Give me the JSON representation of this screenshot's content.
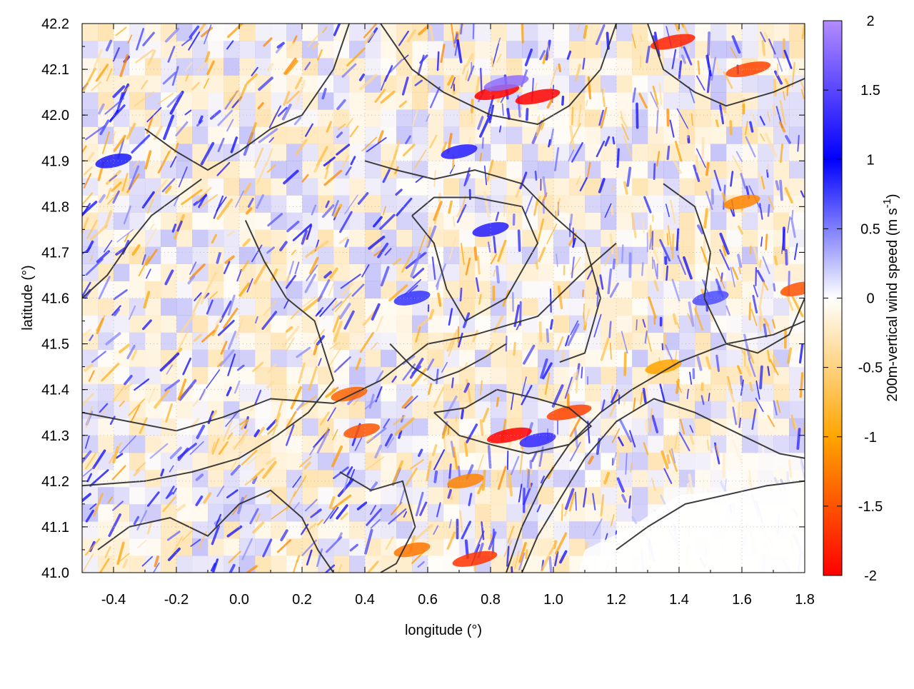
{
  "chart_data": {
    "type": "heatmap",
    "title": "",
    "xlabel": "longitude (°)",
    "ylabel": "latitude (°)",
    "xlim": [
      -0.5,
      1.8
    ],
    "ylim": [
      41.0,
      42.2
    ],
    "xticks": [
      -0.4,
      -0.2,
      0.0,
      0.2,
      0.4,
      0.6,
      0.8,
      1.0,
      1.2,
      1.4,
      1.6,
      1.8
    ],
    "xtick_labels": [
      "-0.4",
      "-0.2",
      "0.0",
      "0.2",
      "0.4",
      "0.6",
      "0.8",
      "1.0",
      "1.2",
      "1.4",
      "1.6",
      "1.8"
    ],
    "yticks": [
      41.0,
      41.1,
      41.2,
      41.3,
      41.4,
      41.5,
      41.6,
      41.7,
      41.8,
      41.9,
      42.0,
      42.1,
      42.2
    ],
    "ytick_labels": [
      "41.0",
      "41.1",
      "41.2",
      "41.3",
      "41.4",
      "41.5",
      "41.6",
      "41.7",
      "41.8",
      "41.9",
      "42.0",
      "42.1",
      "42.2"
    ],
    "grid": true,
    "colorbar": {
      "label_main": "200m-vertical wind speed (m s",
      "label_sup": "-1",
      "label_end": ")",
      "range": [
        -2,
        2
      ],
      "ticks": [
        2,
        1.5,
        1,
        0.5,
        0,
        -0.5,
        -1,
        -1.5,
        -2
      ],
      "tick_labels": [
        "2",
        "1.5",
        "1",
        "0.5",
        "0",
        "-0.5",
        "-1",
        "-1.5",
        "-2"
      ],
      "colors": {
        "max": "#b38cff",
        "high": "#0000ff",
        "zero": "#ffffff",
        "low": "#ffa500",
        "min": "#ff0000"
      }
    },
    "contour_color": "#333333",
    "notes_field_regions": [
      {
        "lon": 0.82,
        "lat": 42.05,
        "w": -2.0
      },
      {
        "lon": 0.95,
        "lat": 42.04,
        "w": -2.0
      },
      {
        "lon": 1.38,
        "lat": 42.16,
        "w": -1.8
      },
      {
        "lon": 1.62,
        "lat": 42.1,
        "w": -1.6
      },
      {
        "lon": 0.86,
        "lat": 41.3,
        "w": -2.0
      },
      {
        "lon": 1.05,
        "lat": 41.35,
        "w": -1.6
      },
      {
        "lon": 0.39,
        "lat": 41.31,
        "w": -1.5
      },
      {
        "lon": 0.35,
        "lat": 41.39,
        "w": -1.4
      },
      {
        "lon": 0.75,
        "lat": 41.03,
        "w": -1.7
      },
      {
        "lon": 0.55,
        "lat": 41.05,
        "w": -1.3
      },
      {
        "lon": 0.72,
        "lat": 41.2,
        "w": -1.2
      },
      {
        "lon": 1.78,
        "lat": 41.62,
        "w": -1.5
      },
      {
        "lon": 1.6,
        "lat": 41.81,
        "w": -1.2
      },
      {
        "lon": 1.35,
        "lat": 41.45,
        "w": -1.0
      },
      {
        "lon": 0.85,
        "lat": 42.07,
        "w": 1.8
      },
      {
        "lon": 0.7,
        "lat": 41.92,
        "w": 1.2
      },
      {
        "lon": 0.8,
        "lat": 41.75,
        "w": 1.2
      },
      {
        "lon": 0.95,
        "lat": 41.29,
        "w": 1.3
      },
      {
        "lon": -0.4,
        "lat": 41.9,
        "w": 0.9
      },
      {
        "lon": 0.55,
        "lat": 41.6,
        "w": 0.8
      },
      {
        "lon": 1.5,
        "lat": 41.6,
        "w": 0.7
      },
      {
        "lon": 1.5,
        "lat": 41.1,
        "w": 0.0
      }
    ]
  }
}
